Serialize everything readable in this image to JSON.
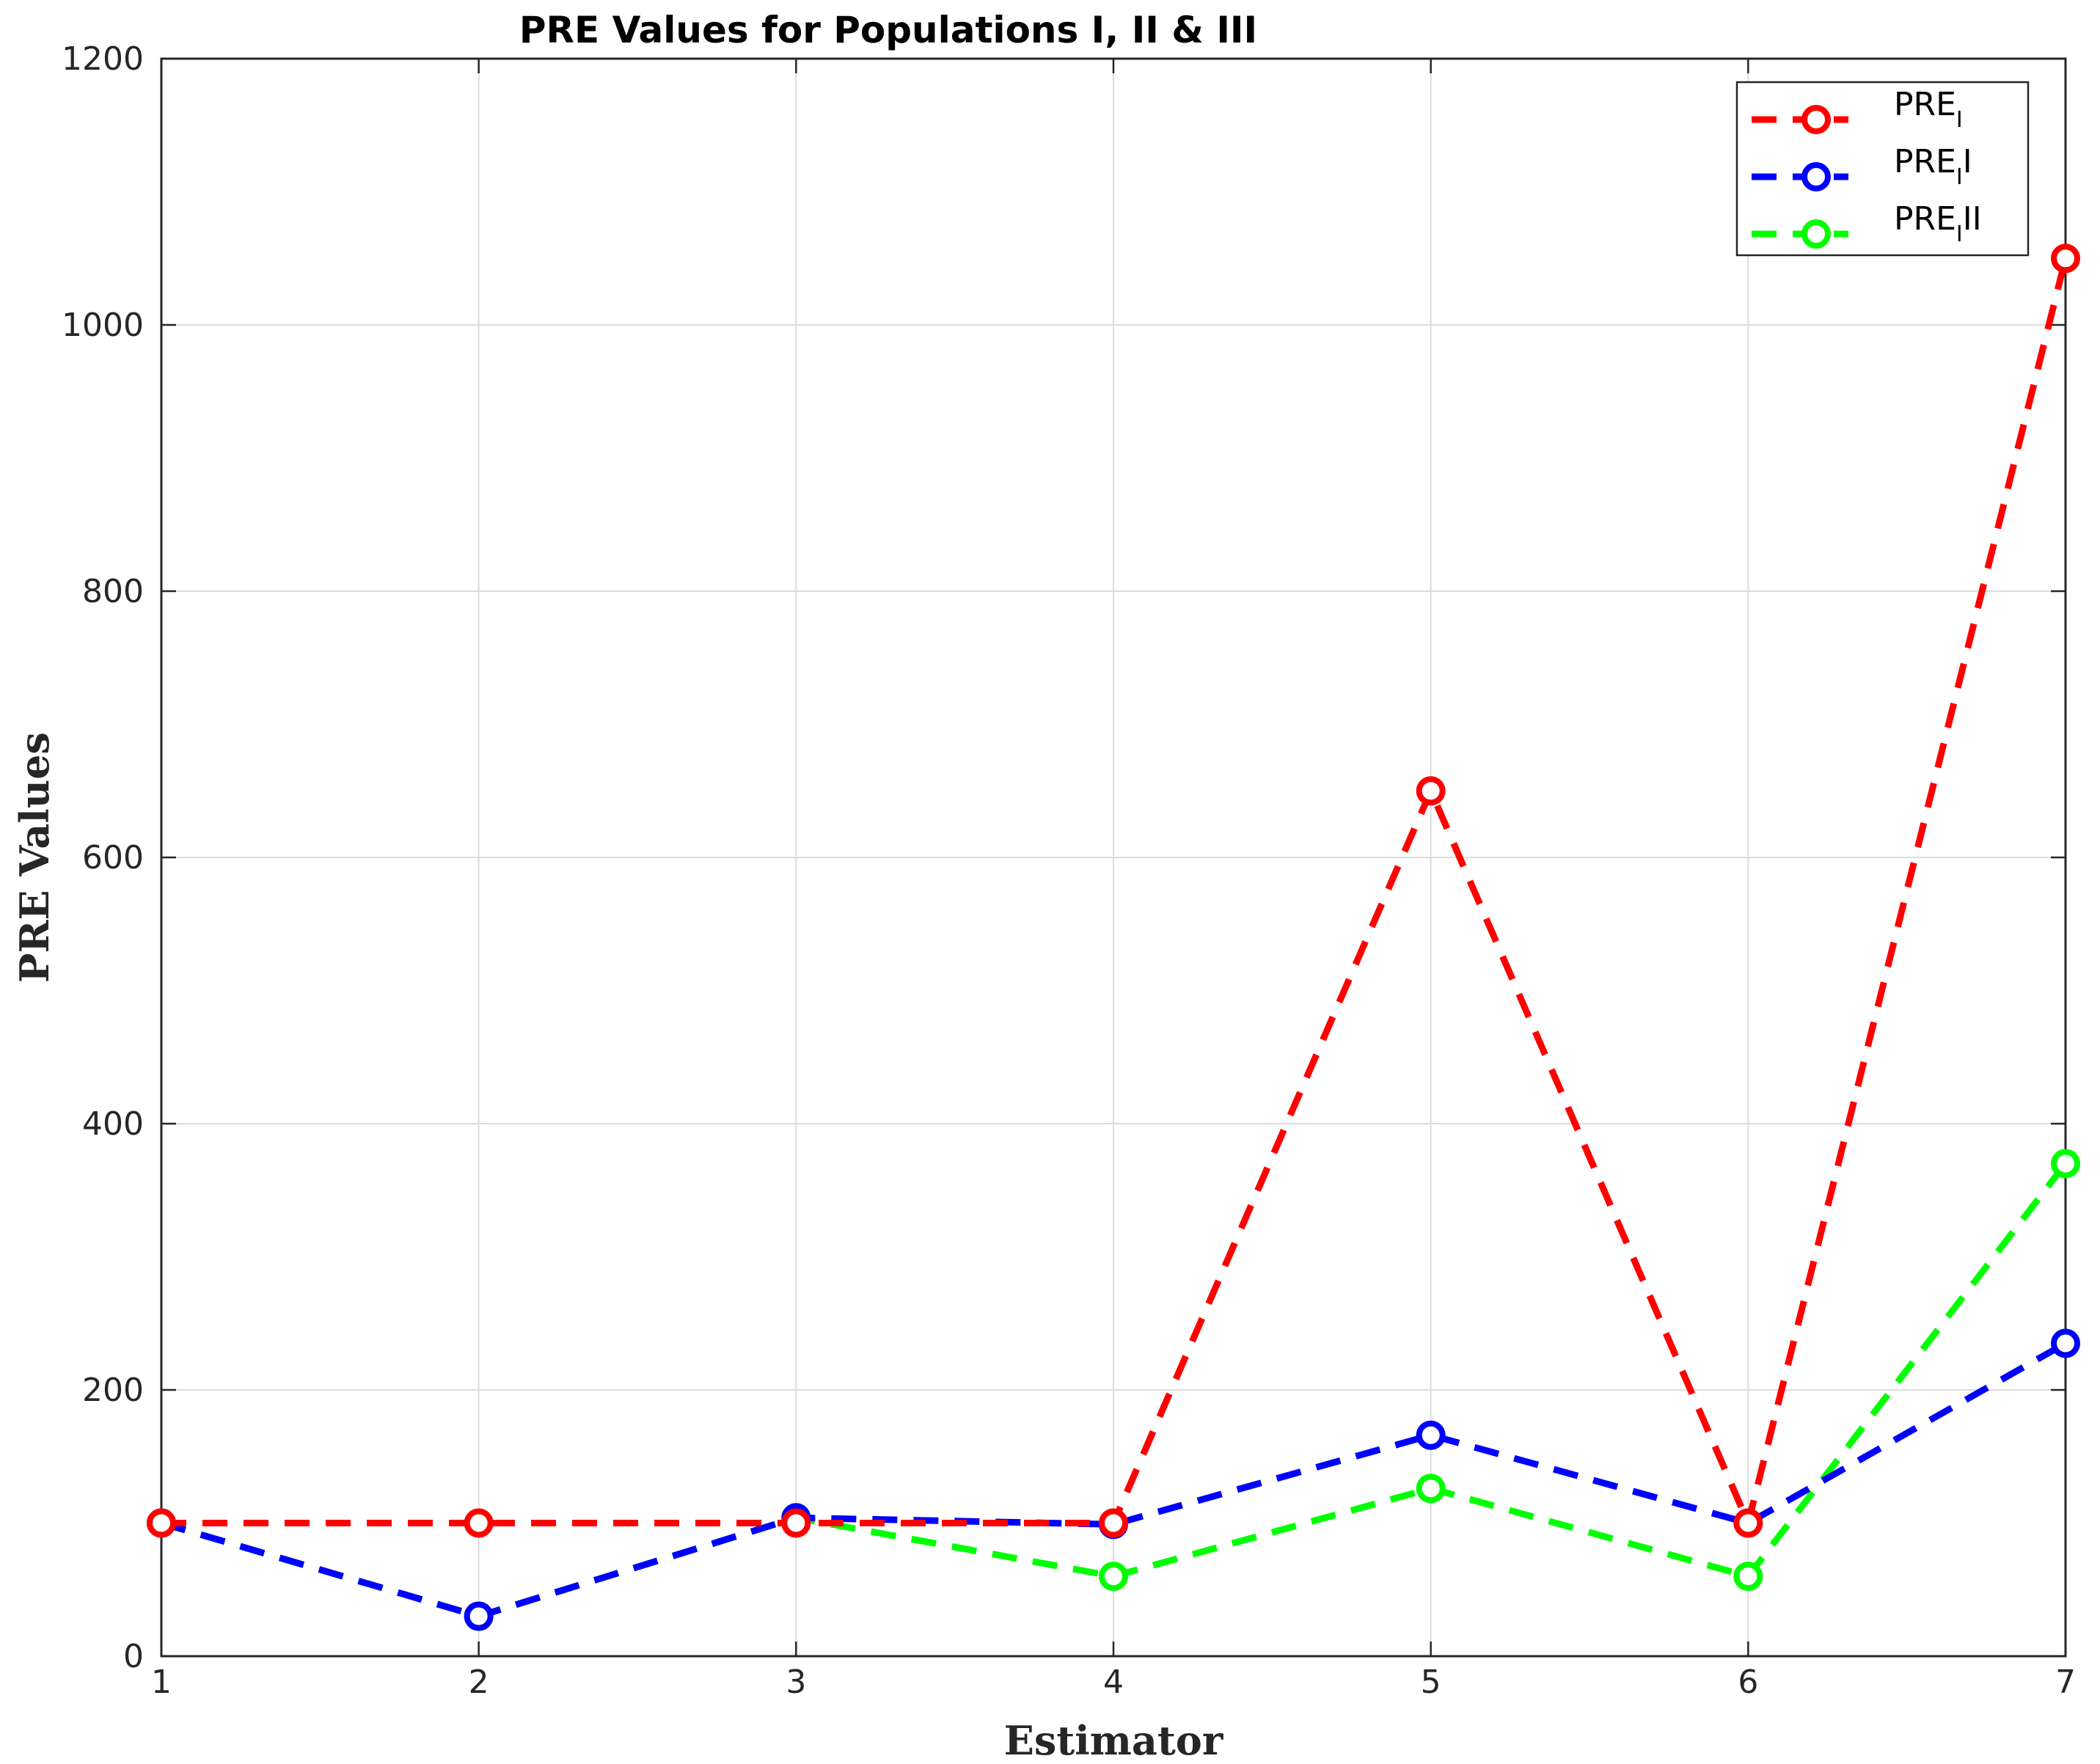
{
  "chart_data": {
    "type": "line",
    "title": "PRE Values for Populations I, II & III",
    "xlabel": "Estimator",
    "ylabel": "PRE Values",
    "x": [
      1,
      2,
      3,
      4,
      5,
      6,
      7
    ],
    "xlim": [
      1,
      7
    ],
    "ylim": [
      0,
      1200
    ],
    "xticks": [
      1,
      2,
      3,
      4,
      5,
      6,
      7
    ],
    "yticks": [
      0,
      200,
      400,
      600,
      800,
      1000,
      1200
    ],
    "grid": true,
    "legend_position": "top-right",
    "series": [
      {
        "name": "PRE_I",
        "legend_base": "PRE",
        "legend_sub": "I",
        "legend_suffix": "",
        "color": "#ff0000",
        "values": [
          100,
          100,
          100,
          100,
          650,
          100,
          1050
        ]
      },
      {
        "name": "PRE_II",
        "legend_base": "PRE",
        "legend_sub": "I",
        "legend_suffix": "I",
        "color": "#0000ff",
        "values": [
          100,
          30,
          104,
          99,
          166,
          100,
          235
        ]
      },
      {
        "name": "PRE_III",
        "legend_base": "PRE",
        "legend_sub": "I",
        "legend_suffix": "II",
        "color": "#00ff00",
        "values": [
          100,
          30,
          104,
          60,
          126,
          60,
          370
        ]
      }
    ]
  }
}
